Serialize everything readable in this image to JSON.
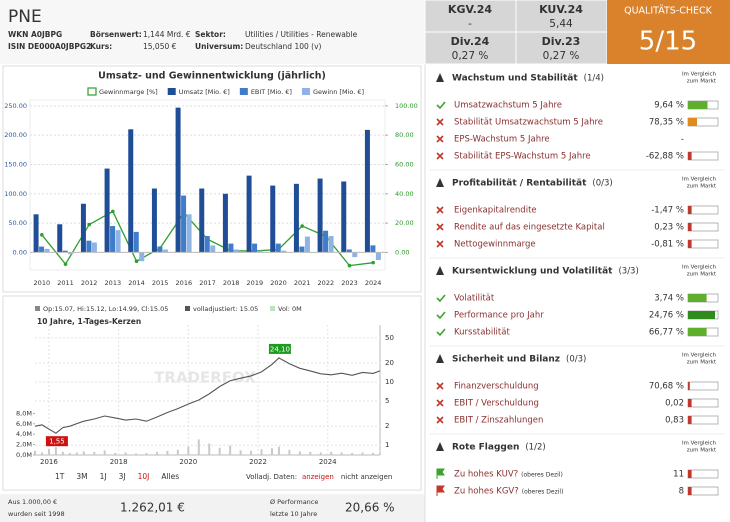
{
  "header": {
    "title": "PNE",
    "wkn": "WKN A0JBPG",
    "isin": "ISIN DE000A0JBPG2",
    "fields": [
      {
        "label": "Börsenwert:",
        "value": "1,144 Mrd. €"
      },
      {
        "label": "Kurs:",
        "value": "15,050 €"
      },
      {
        "label": "Sektor:",
        "value": "Utilities / Utilities - Renewable"
      },
      {
        "label": "Universum:",
        "value": "Deutschland 100 (v)"
      }
    ]
  },
  "kpis": [
    {
      "label": "KGV.24",
      "value": "-"
    },
    {
      "label": "KUV.24",
      "value": "5,44"
    },
    {
      "label": "Div.24",
      "value": "0,27 %"
    },
    {
      "label": "Div.23",
      "value": "0,27 %"
    }
  ],
  "quality": {
    "label": "QUALITÄTS-CHECK",
    "value": "5/15",
    "color": "#d9822b"
  },
  "chart_data": [
    {
      "type": "bar",
      "title": "Umsatz- und Gewinnentwicklung (jährlich)",
      "categories": [
        "2010",
        "2011",
        "2012",
        "2013",
        "2014",
        "2015",
        "2016",
        "2017",
        "2018",
        "2019",
        "2020",
        "2021",
        "2022",
        "2023",
        "2024"
      ],
      "series": [
        {
          "name": "Gewinnmarge [%]",
          "color": "#2ca02c",
          "type": "line",
          "axis": "y2",
          "values": [
            12,
            -8,
            19,
            28,
            -6,
            3,
            27,
            9,
            1,
            1,
            2,
            18,
            11,
            -9,
            -7
          ]
        },
        {
          "name": "Umsatz [Mio. €]",
          "color": "#1f4e96",
          "values": [
            65,
            48,
            83,
            143,
            210,
            109,
            247,
            109,
            100,
            131,
            114,
            117,
            126,
            121,
            209
          ]
        },
        {
          "name": "EBIT [Mio. €]",
          "color": "#3f7cc9",
          "values": [
            10,
            3,
            20,
            45,
            35,
            10,
            97,
            28,
            15,
            15,
            15,
            10,
            37,
            5,
            12
          ]
        },
        {
          "name": "Gewinn [Mio. €]",
          "color": "#8fb4e3",
          "values": [
            6,
            -3,
            17,
            38,
            -15,
            5,
            65,
            12,
            5,
            3,
            3,
            27,
            28,
            -8,
            -13
          ]
        }
      ],
      "ylim": [
        -30,
        260
      ],
      "yticks": [
        {
          "value": 0,
          "label": "0.00"
        },
        {
          "value": 50,
          "label": "50.00"
        },
        {
          "value": 100,
          "label": "100.00"
        },
        {
          "value": 150,
          "label": "150.00"
        },
        {
          "value": 200,
          "label": "200.00"
        },
        {
          "value": 250,
          "label": "250.00"
        }
      ],
      "y2lim": [
        -12,
        104
      ],
      "y2ticks": [
        {
          "value": 0,
          "label": "0.00"
        },
        {
          "value": 20,
          "label": "20.00"
        },
        {
          "value": 40,
          "label": "40.00"
        },
        {
          "value": 60,
          "label": "60.00"
        },
        {
          "value": 80,
          "label": "80.00"
        },
        {
          "value": 100,
          "label": "100.00"
        }
      ],
      "grid": true
    },
    {
      "type": "line",
      "ohlc": "Op:15.07, Hi:15.12, Lo:14.99, Cl:15.05",
      "adjusted": "volladjustiert: 15.05",
      "vol": "Vol: 0M",
      "subtitle": "10 Jahre, 1-Tages-Kerzen",
      "watermark": "TRADERFOX",
      "color": "#555555",
      "volume_color": "#c9c9c9",
      "x": [
        2015.6,
        2015.8,
        2016.0,
        2016.2,
        2016.4,
        2016.6,
        2016.8,
        2017.0,
        2017.3,
        2017.6,
        2017.9,
        2018.2,
        2018.5,
        2018.8,
        2019.1,
        2019.4,
        2019.7,
        2020.0,
        2020.3,
        2020.6,
        2020.9,
        2021.2,
        2021.5,
        2021.8,
        2022.1,
        2022.4,
        2022.6,
        2022.9,
        2023.2,
        2023.5,
        2023.8,
        2024.1,
        2024.4,
        2024.7,
        2025.0,
        2025.3,
        2025.5
      ],
      "values": [
        2.0,
        2.1,
        1.8,
        1.55,
        1.9,
        2.0,
        2.2,
        2.4,
        2.6,
        2.9,
        2.7,
        2.5,
        2.6,
        2.4,
        2.8,
        3.3,
        3.8,
        4.5,
        5.2,
        6.5,
        8.5,
        10.5,
        11.5,
        12.5,
        14.5,
        19,
        24.1,
        19.5,
        16.5,
        15,
        13.5,
        13,
        13.8,
        12.8,
        14.2,
        13.7,
        15.05
      ],
      "volume": [
        0.8,
        0.5,
        1.2,
        1.5,
        0.6,
        0.4,
        0.5,
        0.7,
        0.6,
        0.9,
        0.4,
        0.5,
        0.3,
        0.4,
        0.6,
        0.8,
        1.0,
        1.6,
        3.0,
        2.2,
        1.4,
        1.8,
        0.9,
        0.8,
        1.1,
        1.3,
        1.6,
        1.0,
        0.7,
        0.6,
        0.5,
        0.6,
        0.5,
        0.4,
        0.5,
        0.4,
        0.3
      ],
      "xlim": [
        2015.6,
        2025.5
      ],
      "xticks": [
        2016,
        2018,
        2020,
        2022,
        2024
      ],
      "ylim": [
        0.7,
        80
      ],
      "yticks": [
        1,
        2,
        5,
        10,
        20,
        50
      ],
      "log_scale": true,
      "y2lim": [
        0,
        25
      ],
      "y2ticks": [
        {
          "value": 0,
          "label": "0,0M"
        },
        {
          "value": 2,
          "label": "2,0M"
        },
        {
          "value": 4,
          "label": "4,0M"
        },
        {
          "value": 6,
          "label": "6,0M"
        },
        {
          "value": 8,
          "label": "8,0M"
        }
      ],
      "annotations": [
        {
          "x": 2022.6,
          "value": 24.1,
          "label": "24,10",
          "color": "#1e9a1e"
        },
        {
          "x": 2016.2,
          "value": 1.55,
          "label": "1,55",
          "color": "#cc1111"
        }
      ],
      "ranges": [
        "1T",
        "3M",
        "1J",
        "3J",
        "10J",
        "Alles"
      ],
      "active_range": 4,
      "adjust_label": "Volladj. Daten:",
      "adjust_options": [
        "anzeigen",
        "nicht anzeigen"
      ],
      "active_option": 0
    }
  ],
  "summary": [
    {
      "lines": [
        "Aus 1.000,00 €",
        "wurden seit 1998"
      ],
      "value": "1.262,01 €"
    },
    {
      "lines": [
        "Ø Performance",
        "letzte 10 Jahre"
      ],
      "value": "20,66 %"
    }
  ],
  "sections": [
    {
      "title": "Wachstum und Stabilität",
      "score": "(1/4)",
      "compare": [
        "Im Vergleich",
        "zum Markt"
      ],
      "items": [
        {
          "status": "check",
          "name": "Umsatzwachstum 5 Jahre",
          "value": "9,64 %",
          "meter": 65,
          "color": "#5fae2e"
        },
        {
          "status": "cross",
          "name": "Stabilität Umsatzwachstum 5 Jahre",
          "value": "78,35 %",
          "meter": 30,
          "color": "#e08a1e"
        },
        {
          "status": "cross",
          "name": "EPS-Wachstum 5 Jahre",
          "value": "-",
          "meter": null,
          "color": "#c0392b"
        },
        {
          "status": "cross",
          "name": "Stabilität EPS-Wachstum 5 Jahre",
          "value": "-62,88 %",
          "meter": 12,
          "color": "#c0392b"
        }
      ]
    },
    {
      "title": "Profitabilität / Rentabilität",
      "score": "(0/3)",
      "compare": [
        "Im Vergleich",
        "zum Markt"
      ],
      "items": [
        {
          "status": "cross",
          "name": "Eigenkapitalrendite",
          "value": "-1,47 %",
          "meter": 12,
          "color": "#c0392b"
        },
        {
          "status": "cross",
          "name": "Rendite auf das eingesetzte Kapital",
          "value": "0,23 %",
          "meter": 12,
          "color": "#c0392b"
        },
        {
          "status": "cross",
          "name": "Nettogewinnmarge",
          "value": "-0,81 %",
          "meter": 12,
          "color": "#c0392b"
        }
      ]
    },
    {
      "title": "Kursentwicklung und Volatilität",
      "score": "(3/3)",
      "compare": [
        "Im Vergleich",
        "zum Markt"
      ],
      "items": [
        {
          "status": "check",
          "name": "Volatilität",
          "value": "3,74 %",
          "meter": 62,
          "color": "#5fae2e"
        },
        {
          "status": "check",
          "name": "Performance pro Jahr",
          "value": "24,76 %",
          "meter": 90,
          "color": "#2e8b1e"
        },
        {
          "status": "check",
          "name": "Kursstabilität",
          "value": "66,77 %",
          "meter": 62,
          "color": "#5fae2e"
        }
      ]
    },
    {
      "title": "Sicherheit und Bilanz",
      "score": "(0/3)",
      "compare": [
        "Im Vergleich",
        "zum Markt"
      ],
      "items": [
        {
          "status": "cross",
          "name": "Finanzverschuldung",
          "value": "70,68 %",
          "meter": 6,
          "color": "#c0392b"
        },
        {
          "status": "cross",
          "name": "EBIT / Verschuldung",
          "value": "0,02",
          "meter": 12,
          "color": "#c0392b"
        },
        {
          "status": "cross",
          "name": "EBIT / Zinszahlungen",
          "value": "0,83",
          "meter": 12,
          "color": "#c0392b"
        }
      ]
    },
    {
      "title": "Rote Flaggen",
      "score": "(1/2)",
      "compare": [
        "Im Vergleich",
        "zum Markt"
      ],
      "items": [
        {
          "status": "flag-green",
          "name": "Zu hohes KUV?",
          "note": "(oberes Dezil)",
          "value": "11",
          "meter": 12,
          "color": "#c0392b"
        },
        {
          "status": "flag-red",
          "name": "Zu hohes KGV?",
          "note": "(oberes Dezil)",
          "value": "8",
          "meter": 12,
          "color": "#c0392b"
        }
      ]
    }
  ]
}
